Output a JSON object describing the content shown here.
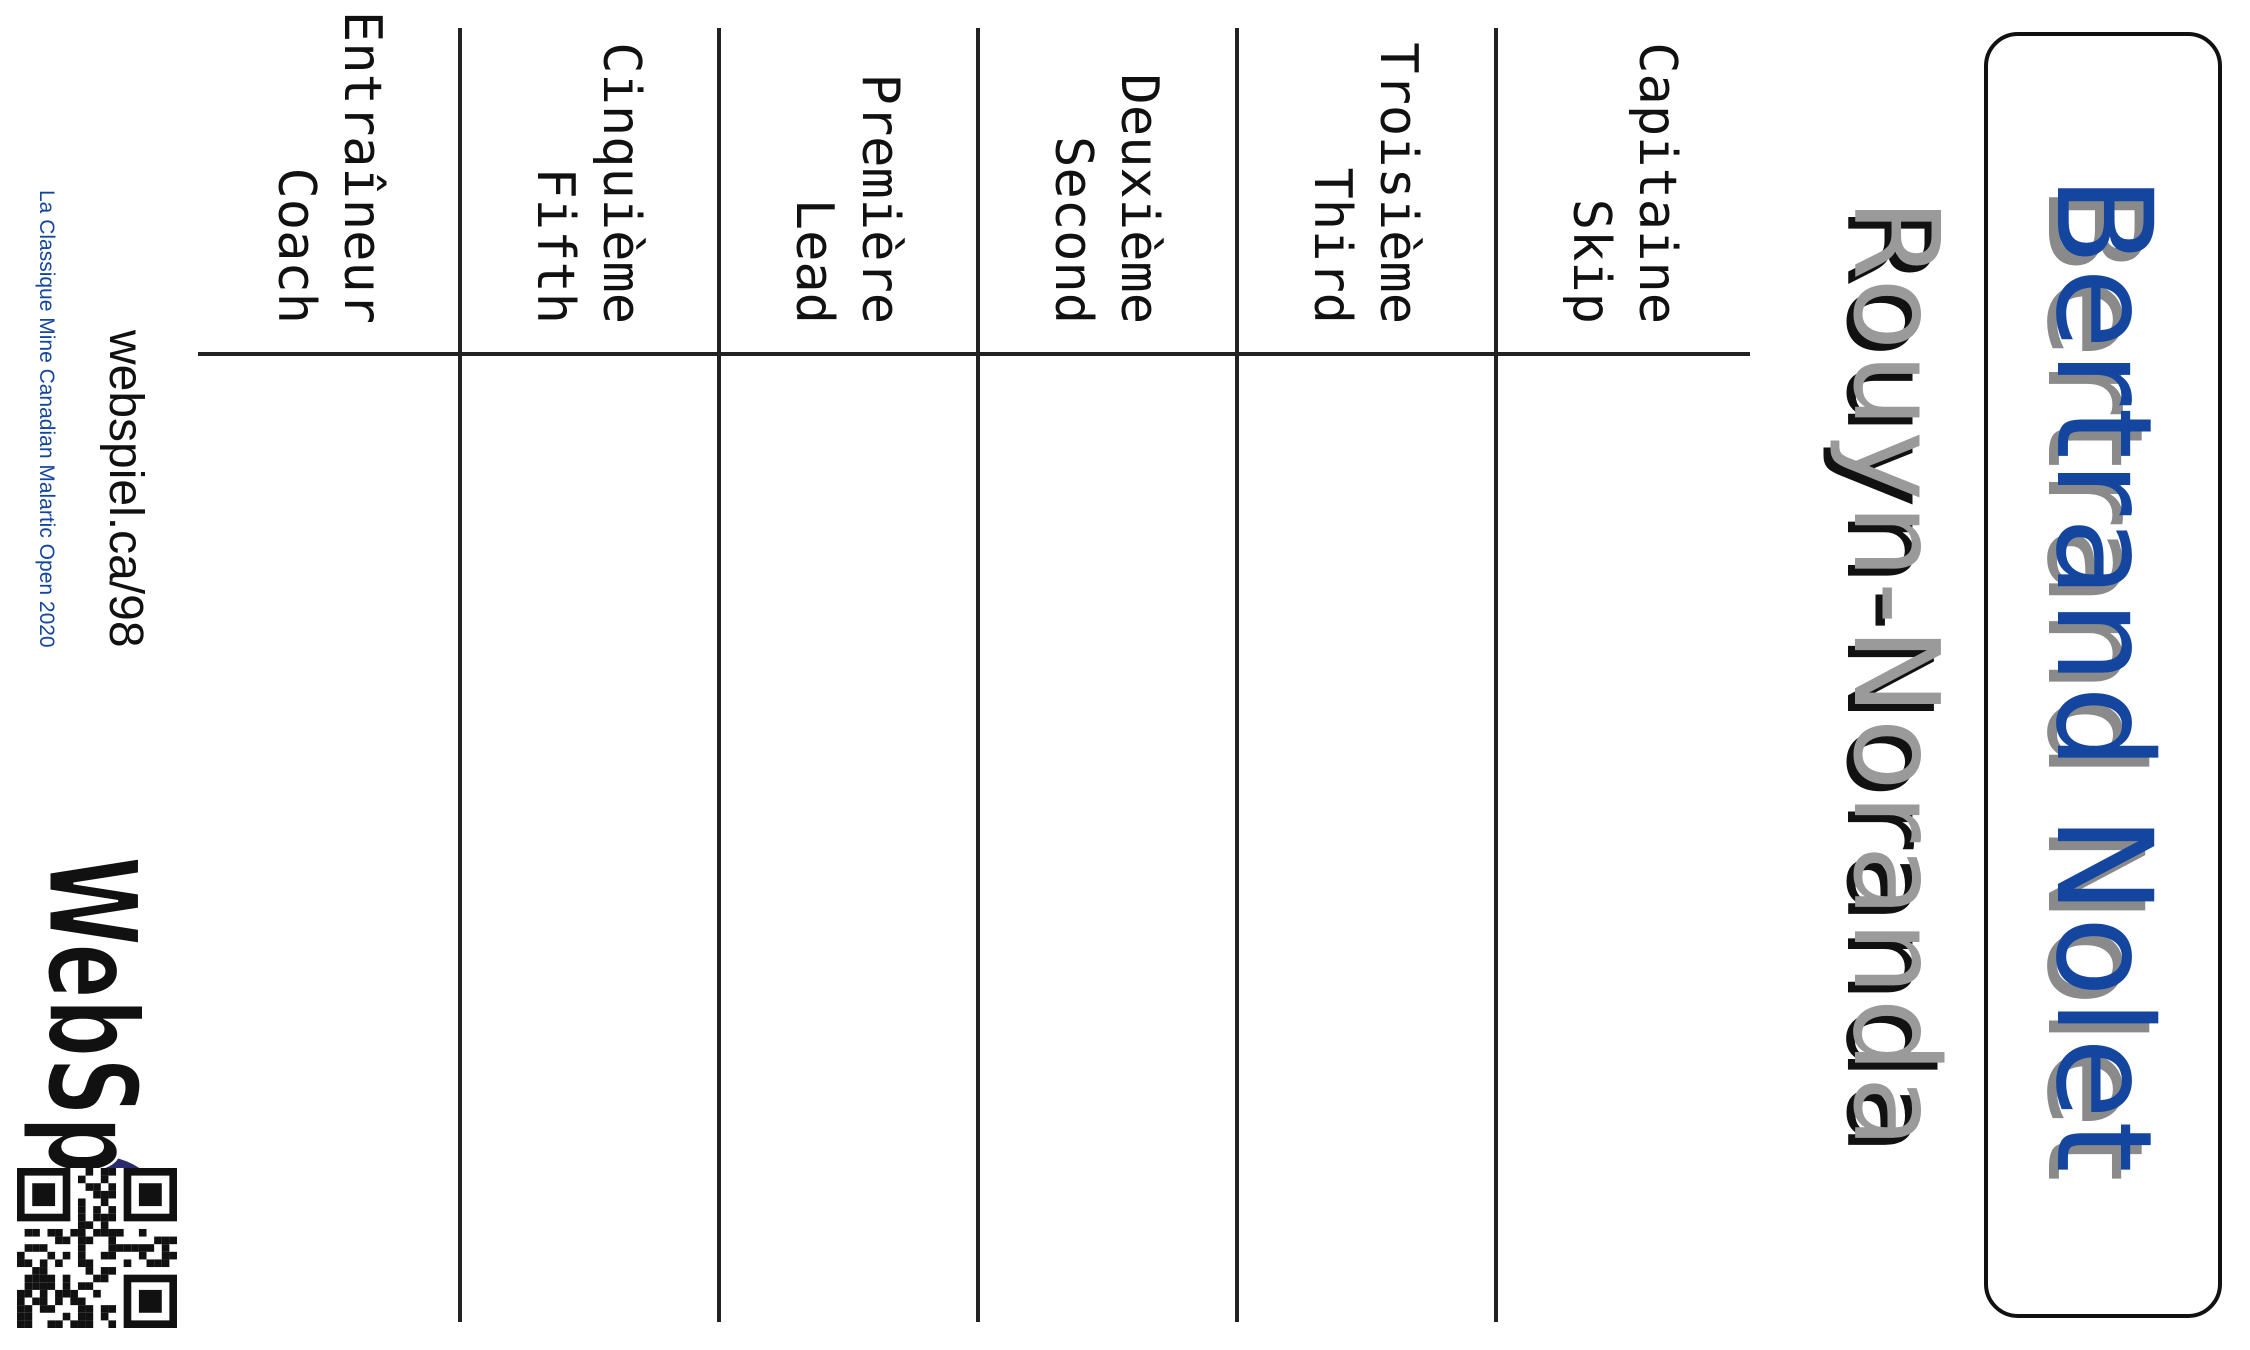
{
  "team": {
    "name": "Bertrand Nolet",
    "city": "Rouyn-Noranda"
  },
  "roster": [
    {
      "fr": "Capitaine",
      "en": "Skip"
    },
    {
      "fr": "Troisième",
      "en": "Third"
    },
    {
      "fr": "Deuxième",
      "en": "Second"
    },
    {
      "fr": "Première",
      "en": "Lead"
    },
    {
      "fr": "Cinquième",
      "en": "Fifth"
    },
    {
      "fr": "Entraîneur",
      "en": "Coach"
    }
  ],
  "footer": {
    "event": "La Classique Mine Canadian Malartic Open 2020",
    "url": "webspiel.ca/98",
    "logo_text": "WebSpiel",
    "qr_icon": "qr-code-icon"
  },
  "colors": {
    "name": "#1446a0",
    "city": "#9a9a9a",
    "logo_navy": "#2c2a6e",
    "logo_red": "#d8322c"
  }
}
